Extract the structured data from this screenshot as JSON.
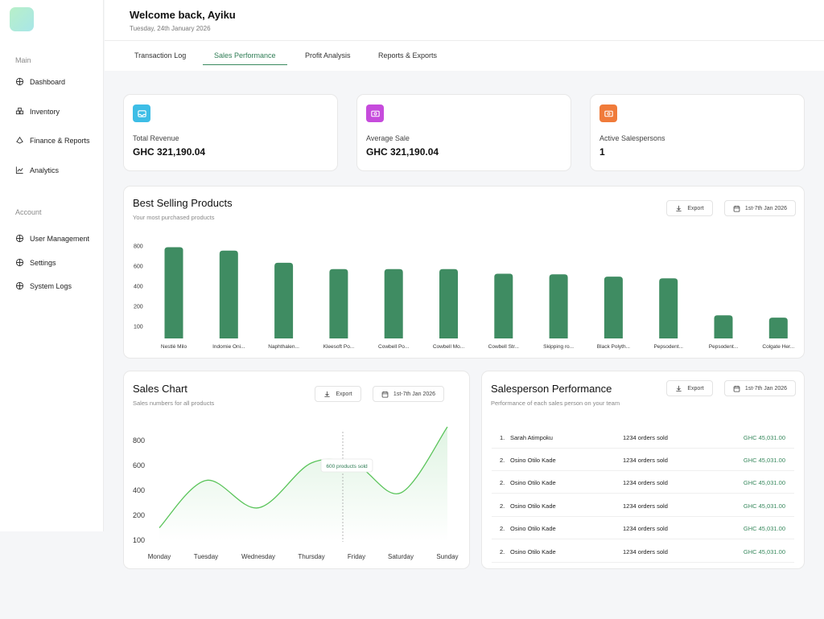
{
  "sidebar": {
    "main_label": "Main",
    "account_label": "Account",
    "main_items": [
      {
        "label": "Dashboard",
        "icon": "dashboard-icon"
      },
      {
        "label": "Inventory",
        "icon": "inventory-icon"
      },
      {
        "label": "Finance & Reports",
        "icon": "finance-icon"
      },
      {
        "label": "Analytics",
        "icon": "analytics-icon"
      }
    ],
    "account_items": [
      {
        "label": "User Management",
        "icon": "user-management-icon"
      },
      {
        "label": "Settings",
        "icon": "settings-icon"
      },
      {
        "label": "System Logs",
        "icon": "system-logs-icon"
      }
    ]
  },
  "header": {
    "welcome": "Welcome back, Ayiku",
    "date": "Tuesday, 24th January 2026"
  },
  "tabs": [
    {
      "label": "Transaction Log",
      "active": false
    },
    {
      "label": "Sales Performance",
      "active": true
    },
    {
      "label": "Profit Analysis",
      "active": false
    },
    {
      "label": "Reports & Exports",
      "active": false
    }
  ],
  "stats": [
    {
      "label": "Total Revenue",
      "value": "GHC 321,190.04",
      "color": "#3dbde6"
    },
    {
      "label": "Average Sale",
      "value": "GHC 321,190.04",
      "color": "#c64bdc"
    },
    {
      "label": "Active Salespersons",
      "value": "1",
      "color": "#f07b3a"
    }
  ],
  "best_selling": {
    "title": "Best Selling Products",
    "subtitle": "Your most purchased products",
    "export_label": "Export",
    "date_range": "1st-7th Jan 2026"
  },
  "sales_chart": {
    "title": "Sales Chart",
    "subtitle": "Sales numbers for all products",
    "export_label": "Export",
    "date_range": "1st-7th Jan 2026",
    "tooltip": "600 products sold"
  },
  "salesperson": {
    "title": "Salesperson Performance",
    "subtitle": "Performance of each sales person on your team",
    "export_label": "Export",
    "date_range": "1st-7th Jan 2026",
    "rows": [
      {
        "rank": "1.",
        "name": "Sarah Atimpoku",
        "orders": "1234 orders sold",
        "amount": "GHC 45,031.00"
      },
      {
        "rank": "2.",
        "name": "Osino Otilo Kade",
        "orders": "1234 orders sold",
        "amount": "GHC 45,031.00"
      },
      {
        "rank": "2.",
        "name": "Osino Otilo Kade",
        "orders": "1234 orders sold",
        "amount": "GHC 45,031.00"
      },
      {
        "rank": "2.",
        "name": "Osino Otilo Kade",
        "orders": "1234 orders sold",
        "amount": "GHC 45,031.00"
      },
      {
        "rank": "2.",
        "name": "Osino Otilo Kade",
        "orders": "1234 orders sold",
        "amount": "GHC 45,031.00"
      },
      {
        "rank": "2.",
        "name": "Osino Otilo Kade",
        "orders": "1234 orders sold",
        "amount": "GHC 45,031.00"
      }
    ]
  },
  "chart_data": [
    {
      "type": "bar",
      "categories": [
        "Nestlé Milo",
        "Indomie Oni...",
        "Naphthalen...",
        "Kleesoft Po...",
        "Cowbell Po...",
        "Cowbell Mo...",
        "Cowbell Str...",
        "Skipping ro...",
        "Black Polyth...",
        "Pepsodent...",
        "Pepsodent...",
        "Colgate Her..."
      ],
      "values": [
        790,
        760,
        655,
        600,
        600,
        600,
        560,
        555,
        535,
        520,
        200,
        180
      ],
      "yticks": [
        800,
        600,
        400,
        200,
        100
      ],
      "ylim": [
        0,
        800
      ],
      "color": "#3f8c62"
    },
    {
      "type": "line",
      "categories": [
        "Monday",
        "Tuesday",
        "Wednesday",
        "Thursday",
        "Friday",
        "Saturday",
        "Sunday"
      ],
      "values": [
        150,
        480,
        260,
        620,
        600,
        380,
        910
      ],
      "yticks": [
        800,
        600,
        400,
        200,
        100
      ],
      "highlight": "Friday",
      "color": "#5ac45a"
    }
  ]
}
